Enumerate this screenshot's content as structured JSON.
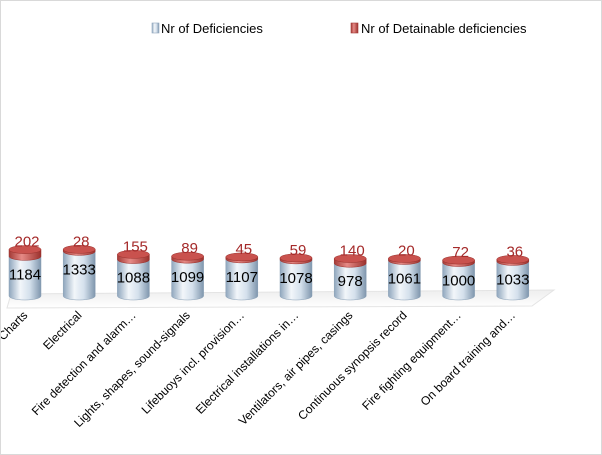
{
  "chart_data": {
    "type": "bar",
    "stacked": true,
    "style": "3d-cylinder",
    "categories": [
      "Charts",
      "Electrical",
      "Fire detection and alarm…",
      "Lights, shapes, sound-signals",
      "Lifebuoys incl. provision…",
      "Electrical installations in…",
      "Ventilators, air pipes, casings",
      "Continuous synopsis record",
      "Fire fighting equipment…",
      "On board training and…"
    ],
    "series": [
      {
        "name": "Nr of Deficiencies",
        "values": [
          1184,
          1333,
          1088,
          1099,
          1107,
          1078,
          978,
          1061,
          1000,
          1033
        ]
      },
      {
        "name": "Nr of Detainable deficiencies",
        "values": [
          202,
          28,
          155,
          89,
          45,
          59,
          140,
          20,
          72,
          36
        ]
      }
    ],
    "legend_position": "top",
    "grid": false,
    "colors": {
      "deficiencies": "#bcd0e4",
      "detainable": "#c0504d",
      "detainable_label": "#a52a2a"
    }
  }
}
